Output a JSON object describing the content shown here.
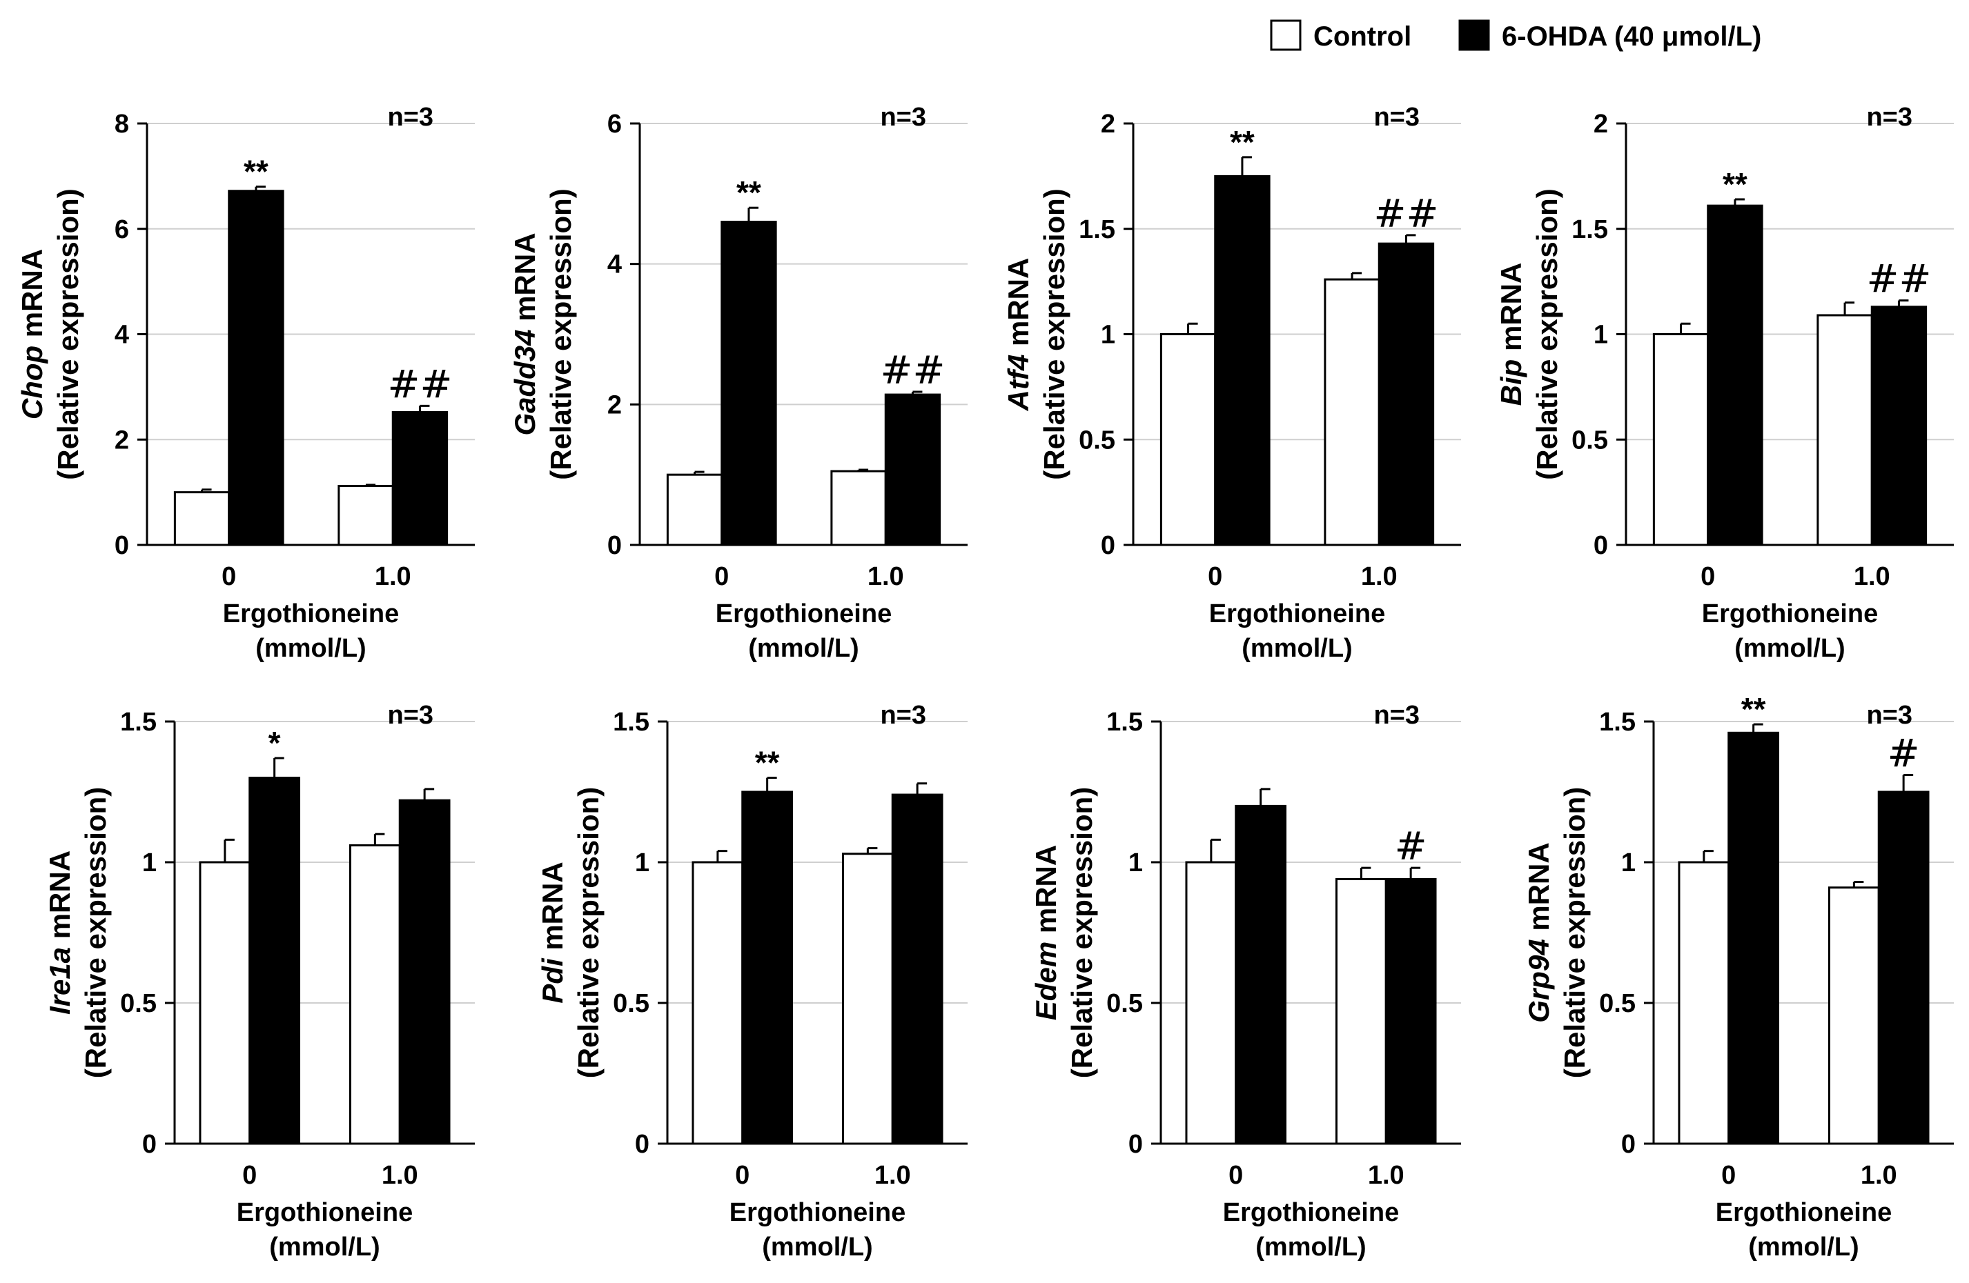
{
  "legend": {
    "items": [
      {
        "label": "Control",
        "color": "#ffffff"
      },
      {
        "label": "6-OHDA (40 μmol/L)",
        "color": "#000000"
      }
    ]
  },
  "chart_data": [
    {
      "type": "bar",
      "gene": "Chop",
      "ylabel_suffix": " mRNA",
      "ylabel2": "(Relative expression)",
      "categories": [
        "0",
        "1.0"
      ],
      "xlabel": "Ergothioneine",
      "xlabel2": "(mmol/L)",
      "n_label": "n=3",
      "ylim": [
        0,
        8
      ],
      "yticks": [
        "0",
        "2",
        "4",
        "6",
        "8"
      ],
      "ytick_values": [
        0,
        2,
        4,
        6,
        8
      ],
      "series": [
        {
          "name": "Control",
          "values": [
            1.0,
            1.12
          ],
          "errors": [
            0.05,
            0.02
          ],
          "annotations": [
            "",
            ""
          ]
        },
        {
          "name": "6-OHDA (40 μmol/L)",
          "values": [
            6.72,
            2.52
          ],
          "errors": [
            0.08,
            0.12
          ],
          "annotations": [
            "**",
            "##"
          ]
        }
      ]
    },
    {
      "type": "bar",
      "gene": "Gadd34",
      "ylabel_suffix": " mRNA",
      "ylabel2": "(Relative expression)",
      "categories": [
        "0",
        "1.0"
      ],
      "xlabel": "Ergothioneine",
      "xlabel2": "(mmol/L)",
      "n_label": "n=3",
      "ylim": [
        0,
        6
      ],
      "yticks": [
        "0",
        "2",
        "4",
        "6"
      ],
      "ytick_values": [
        0,
        2,
        4,
        6
      ],
      "series": [
        {
          "name": "Control",
          "values": [
            1.0,
            1.05
          ],
          "errors": [
            0.04,
            0.02
          ],
          "annotations": [
            "",
            ""
          ]
        },
        {
          "name": "6-OHDA (40 μmol/L)",
          "values": [
            4.6,
            2.14
          ],
          "errors": [
            0.2,
            0.04
          ],
          "annotations": [
            "**",
            "##"
          ]
        }
      ]
    },
    {
      "type": "bar",
      "gene": "Atf4",
      "ylabel_suffix": " mRNA",
      "ylabel2": "(Relative expression)",
      "categories": [
        "0",
        "1.0"
      ],
      "xlabel": "Ergothioneine",
      "xlabel2": "(mmol/L)",
      "n_label": "n=3",
      "ylim": [
        0,
        2
      ],
      "yticks": [
        "0",
        "0.5",
        "1",
        "1.5",
        "2"
      ],
      "ytick_values": [
        0,
        0.5,
        1,
        1.5,
        2
      ],
      "series": [
        {
          "name": "Control",
          "values": [
            1.0,
            1.26
          ],
          "errors": [
            0.05,
            0.03
          ],
          "annotations": [
            "",
            ""
          ]
        },
        {
          "name": "6-OHDA (40 μmol/L)",
          "values": [
            1.75,
            1.43
          ],
          "errors": [
            0.09,
            0.04
          ],
          "annotations": [
            "**",
            "##"
          ]
        }
      ]
    },
    {
      "type": "bar",
      "gene": "Bip",
      "ylabel_suffix": " mRNA",
      "ylabel2": "(Relative expression)",
      "categories": [
        "0",
        "1.0"
      ],
      "xlabel": "Ergothioneine",
      "xlabel2": "(mmol/L)",
      "n_label": "n=3",
      "ylim": [
        0,
        2
      ],
      "yticks": [
        "0",
        "0.5",
        "1",
        "1.5",
        "2"
      ],
      "ytick_values": [
        0,
        0.5,
        1,
        1.5,
        2
      ],
      "series": [
        {
          "name": "Control",
          "values": [
            1.0,
            1.09
          ],
          "errors": [
            0.05,
            0.06
          ],
          "annotations": [
            "",
            ""
          ]
        },
        {
          "name": "6-OHDA (40 μmol/L)",
          "values": [
            1.61,
            1.13
          ],
          "errors": [
            0.03,
            0.03
          ],
          "annotations": [
            "**",
            "##"
          ]
        }
      ]
    },
    {
      "type": "bar",
      "gene": "Ire1a",
      "ylabel_suffix": " mRNA",
      "ylabel2": "(Relative expression)",
      "categories": [
        "0",
        "1.0"
      ],
      "xlabel": "Ergothioneine",
      "xlabel2": "(mmol/L)",
      "n_label": "n=3",
      "ylim": [
        0,
        1.5
      ],
      "yticks": [
        "0",
        "0.5",
        "1",
        "1.5"
      ],
      "ytick_values": [
        0,
        0.5,
        1,
        1.5
      ],
      "series": [
        {
          "name": "Control",
          "values": [
            1.0,
            1.06
          ],
          "errors": [
            0.08,
            0.04
          ],
          "annotations": [
            "",
            ""
          ]
        },
        {
          "name": "6-OHDA (40 μmol/L)",
          "values": [
            1.3,
            1.22
          ],
          "errors": [
            0.07,
            0.04
          ],
          "annotations": [
            "*",
            ""
          ]
        }
      ]
    },
    {
      "type": "bar",
      "gene": "Pdi",
      "ylabel_suffix": " mRNA",
      "ylabel2": "(Relative expression)",
      "categories": [
        "0",
        "1.0"
      ],
      "xlabel": "Ergothioneine",
      "xlabel2": "(mmol/L)",
      "n_label": "n=3",
      "ylim": [
        0,
        1.5
      ],
      "yticks": [
        "0",
        "0.5",
        "1",
        "1.5"
      ],
      "ytick_values": [
        0,
        0.5,
        1,
        1.5
      ],
      "series": [
        {
          "name": "Control",
          "values": [
            1.0,
            1.03
          ],
          "errors": [
            0.04,
            0.02
          ],
          "annotations": [
            "",
            ""
          ]
        },
        {
          "name": "6-OHDA (40 μmol/L)",
          "values": [
            1.25,
            1.24
          ],
          "errors": [
            0.05,
            0.04
          ],
          "annotations": [
            "**",
            ""
          ]
        }
      ]
    },
    {
      "type": "bar",
      "gene": "Edem",
      "ylabel_suffix": " mRNA",
      "ylabel2": "(Relative expression)",
      "categories": [
        "0",
        "1.0"
      ],
      "xlabel": "Ergothioneine",
      "xlabel2": "(mmol/L)",
      "n_label": "n=3",
      "ylim": [
        0,
        1.5
      ],
      "yticks": [
        "0",
        "0.5",
        "1",
        "1.5"
      ],
      "ytick_values": [
        0,
        0.5,
        1,
        1.5
      ],
      "series": [
        {
          "name": "Control",
          "values": [
            1.0,
            0.94
          ],
          "errors": [
            0.08,
            0.04
          ],
          "annotations": [
            "",
            ""
          ]
        },
        {
          "name": "6-OHDA (40 μmol/L)",
          "values": [
            1.2,
            0.94
          ],
          "errors": [
            0.06,
            0.04
          ],
          "annotations": [
            "",
            "#"
          ]
        }
      ]
    },
    {
      "type": "bar",
      "gene": "Grp94",
      "ylabel_suffix": " mRNA",
      "ylabel2": "(Relative expression)",
      "categories": [
        "0",
        "1.0"
      ],
      "xlabel": "Ergothioneine",
      "xlabel2": "(mmol/L)",
      "n_label": "n=3",
      "ylim": [
        0,
        1.5
      ],
      "yticks": [
        "0",
        "0.5",
        "1",
        "1.5"
      ],
      "ytick_values": [
        0,
        0.5,
        1,
        1.5
      ],
      "series": [
        {
          "name": "Control",
          "values": [
            1.0,
            0.91
          ],
          "errors": [
            0.04,
            0.02
          ],
          "annotations": [
            "",
            ""
          ]
        },
        {
          "name": "6-OHDA (40 μmol/L)",
          "values": [
            1.46,
            1.25
          ],
          "errors": [
            0.03,
            0.06
          ],
          "annotations": [
            "**",
            "#"
          ]
        }
      ]
    }
  ]
}
